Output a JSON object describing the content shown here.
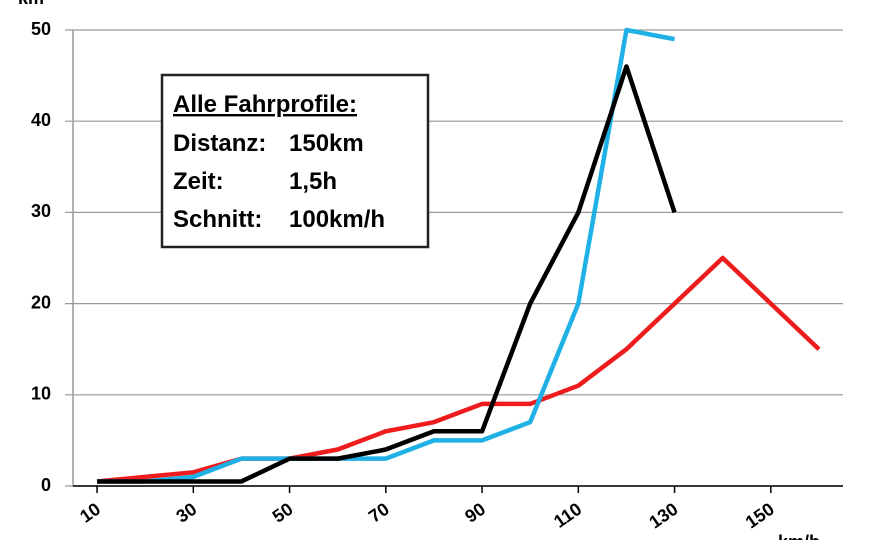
{
  "chart_data": {
    "type": "line",
    "y_label": "km",
    "x_label": "km/h",
    "x": [
      10,
      20,
      30,
      40,
      50,
      60,
      70,
      80,
      90,
      100,
      110,
      120,
      130,
      140,
      150,
      160
    ],
    "xlim": [
      5,
      165
    ],
    "xticks": [
      10,
      30,
      50,
      70,
      90,
      110,
      130,
      150
    ],
    "ylim": [
      0,
      50
    ],
    "yticks": [
      0,
      10,
      20,
      30,
      40,
      50
    ],
    "grid": true,
    "series": [
      {
        "color": "#ee1c1c",
        "values": [
          0.5,
          1,
          1.5,
          3,
          3,
          4,
          6,
          7,
          9,
          9,
          11,
          15,
          20,
          25,
          20,
          15
        ]
      },
      {
        "color": "#1fb0e6",
        "values": [
          0.5,
          0.5,
          1,
          3,
          3,
          3,
          3,
          5,
          5,
          7,
          20,
          50,
          49,
          null,
          null,
          null
        ]
      },
      {
        "color": "#000000",
        "values": [
          0.5,
          0.5,
          0.5,
          0.5,
          3,
          3,
          4,
          6,
          6,
          20,
          30,
          46,
          30,
          null,
          null,
          null
        ]
      }
    ],
    "annotation": {
      "title": "Alle Fahrprofile:",
      "rows": [
        [
          "Distanz:",
          "150km"
        ],
        [
          "Zeit:",
          "1,5h"
        ],
        [
          "Schnitt:",
          "100km/h"
        ]
      ]
    }
  }
}
